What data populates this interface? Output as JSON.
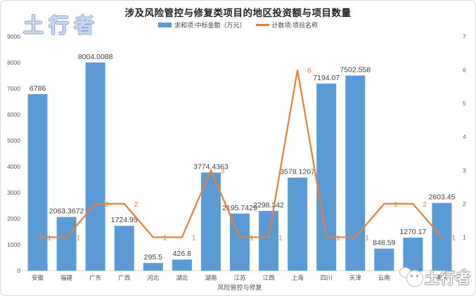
{
  "title": "涉及风险管控与修复类项目的地区投资额与项目数量",
  "watermark_top": {
    "text": "土行者"
  },
  "watermark_bottom": {
    "text": "土行者"
  },
  "legend": [
    {
      "label": "求和项:中标金额（万元）",
      "type": "bar",
      "color": "#5B9BD5"
    },
    {
      "label": "计数项:项目名称",
      "type": "line",
      "color": "#ED7D31"
    }
  ],
  "colors": {
    "bar": "#5B9BD5",
    "line": "#ED7D31",
    "axis_text": "#595959",
    "bar_label": "#3f3f3f",
    "axis_line": "#d9d9d9"
  },
  "chart_data": {
    "type": "bar",
    "subtype": "combo-bar-line-dual-axis",
    "title": "涉及风险管控与修复类项目的地区投资额与项目数量",
    "xlabel": "风险管控与修复",
    "grid": false,
    "legend_position": "top",
    "categories": [
      "安徽",
      "福建",
      "广东",
      "广西",
      "河北",
      "湖北",
      "湖南",
      "江苏",
      "江西",
      "上海",
      "四川",
      "天津",
      "云南",
      "浙江",
      "重庆"
    ],
    "series": [
      {
        "name": "求和项:中标金额（万元）",
        "type": "bar",
        "axis": "left",
        "color": "#5B9BD5",
        "values": [
          6786,
          2063.3672,
          8004.0088,
          1724.95,
          295.5,
          426.8,
          3774.4363,
          2195.7429,
          2298.342,
          3578.1207,
          7194.07,
          7502.558,
          848.59,
          1270.17,
          2603.45
        ],
        "labels": [
          "6786",
          "2063.3672",
          "8004.0088",
          "1724.95",
          "295.5",
          "426.8",
          "3774.4363",
          "2195.7429",
          "2298.342",
          "3578.1207",
          "7194.07",
          "7502.558",
          "848.59",
          "1270.17",
          "2603.45"
        ]
      },
      {
        "name": "计数项:项目名称",
        "type": "line",
        "axis": "right",
        "color": "#ED7D31",
        "values": [
          1,
          1,
          2,
          2,
          1,
          1,
          3,
          1,
          1,
          6,
          1,
          1,
          2,
          2,
          1
        ],
        "labels": [
          "1",
          "1",
          "2",
          "2",
          "1",
          "1",
          "3",
          "1",
          "1",
          "6",
          "1",
          "1",
          "2",
          "2",
          "1"
        ]
      }
    ],
    "left_axis": {
      "min": 0,
      "max": 9000,
      "step": 1000,
      "ticks": [
        "0",
        "1000",
        "2000",
        "3000",
        "4000",
        "5000",
        "6000",
        "7000",
        "8000",
        "9000"
      ]
    },
    "right_axis": {
      "min": 0,
      "max": 7,
      "step": 1,
      "ticks": [
        "0",
        "1",
        "2",
        "3",
        "4",
        "5",
        "6",
        "7"
      ]
    }
  }
}
